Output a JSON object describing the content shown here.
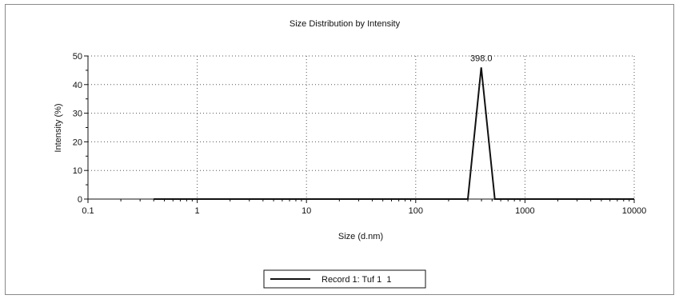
{
  "chart_data": {
    "type": "line",
    "title": "Size Distribution by Intensity",
    "xlabel": "Size (d.nm)",
    "ylabel": "Intensity (%)",
    "x_scale": "log",
    "xlim": [
      0.1,
      10000
    ],
    "ylim": [
      0,
      50
    ],
    "x_ticks": [
      "0.1",
      "1",
      "10",
      "100",
      "1000",
      "10000"
    ],
    "y_ticks": [
      "0",
      "10",
      "20",
      "30",
      "40",
      "50"
    ],
    "grid": "dotted",
    "legend_position": "bottom-center",
    "peak_annotation": {
      "x": 398.0,
      "y": 46,
      "label": "398.0"
    },
    "series": [
      {
        "name": "Record 1: Tuf 1  1",
        "color": "#111111",
        "x": [
          0.4,
          300,
          398,
          530,
          10000
        ],
        "y": [
          0,
          0,
          46,
          0,
          0
        ]
      }
    ]
  }
}
